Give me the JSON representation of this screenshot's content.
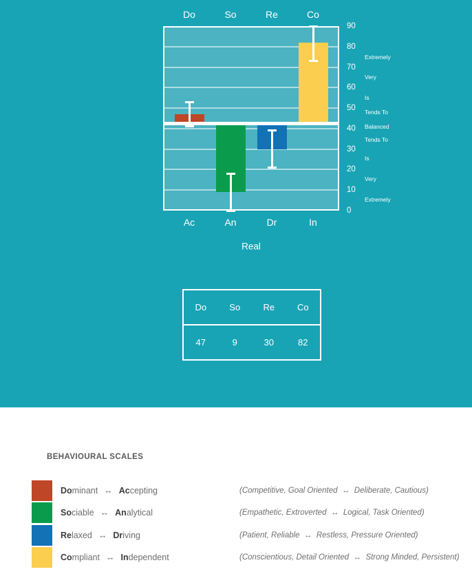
{
  "chart_data": {
    "type": "bar",
    "categories": [
      "Do",
      "So",
      "Re",
      "Co"
    ],
    "bottom_categories": [
      "Ac",
      "An",
      "Dr",
      "In"
    ],
    "series": [
      {
        "name": "Real",
        "values": [
          47,
          9,
          30,
          82
        ]
      }
    ],
    "values": [
      47,
      9,
      30,
      82
    ],
    "baseline": 42.5,
    "error_bars": [
      [
        41,
        53
      ],
      [
        0,
        18
      ],
      [
        21,
        39
      ],
      [
        73,
        90
      ]
    ],
    "ylim": [
      0,
      90
    ],
    "yticks": [
      90,
      80,
      70,
      60,
      50,
      40,
      30,
      20,
      10,
      0
    ],
    "gridline_values": [
      10,
      20,
      30,
      40,
      50,
      60,
      70,
      80
    ],
    "grid": true,
    "legend_position": "none",
    "title": "",
    "xlabel": "Real",
    "ylabel": "",
    "bar_colors": [
      "#bf4627",
      "#0a9c4c",
      "#1371b5",
      "#fbce4f"
    ],
    "scale_labels": [
      {
        "text": "Extremely",
        "value": 75
      },
      {
        "text": "Very",
        "value": 65
      },
      {
        "text": "Is",
        "value": 55
      },
      {
        "text": "Tends To",
        "value": 48
      },
      {
        "text": "Balanced",
        "value": 41
      },
      {
        "text": "Tends To",
        "value": 34.5
      },
      {
        "text": "Is",
        "value": 25.5
      },
      {
        "text": "Very",
        "value": 15.5
      },
      {
        "text": "Extremely",
        "value": 5.5
      }
    ]
  },
  "table": {
    "headers": [
      "Do",
      "So",
      "Re",
      "Co"
    ],
    "values": [
      "47",
      "9",
      "30",
      "82"
    ]
  },
  "legend": {
    "title": "BEHAVIOURAL SCALES",
    "arrow": "↔",
    "rows": [
      {
        "color": "#bf4627",
        "left_bold": "Do",
        "left_rest": "minant",
        "right_bold": "Ac",
        "right_rest": "cepting",
        "description": "(Competitive, Goal Oriented  ↔  Deliberate, Cautious)"
      },
      {
        "color": "#0a9c4c",
        "left_bold": "So",
        "left_rest": "ciable",
        "right_bold": "An",
        "right_rest": "alytical",
        "description": "(Empathetic, Extroverted  ↔  Logical, Task Oriented)"
      },
      {
        "color": "#1371b5",
        "left_bold": "Re",
        "left_rest": "laxed",
        "right_bold": "Dr",
        "right_rest": "iving",
        "description": "(Patient, Reliable  ↔  Restless, Pressure Oriented)"
      },
      {
        "color": "#fbce4f",
        "left_bold": "Co",
        "left_rest": "mpliant",
        "right_bold": "In",
        "right_rest": "dependent",
        "description": "(Conscientious, Detail Oriented  ↔  Strong Minded, Persistent)"
      }
    ]
  },
  "colors": {
    "page_teal": "#18a4b5",
    "plot_bg": "#4bb3c2",
    "gridline": "rgba(255,255,255,0.55)",
    "baseline_band": "#ffffff",
    "chart_text": "#ffffff",
    "heading_text": "#595959",
    "body_text": "#6e6e6e",
    "bold_text": "#3d3d3d"
  }
}
